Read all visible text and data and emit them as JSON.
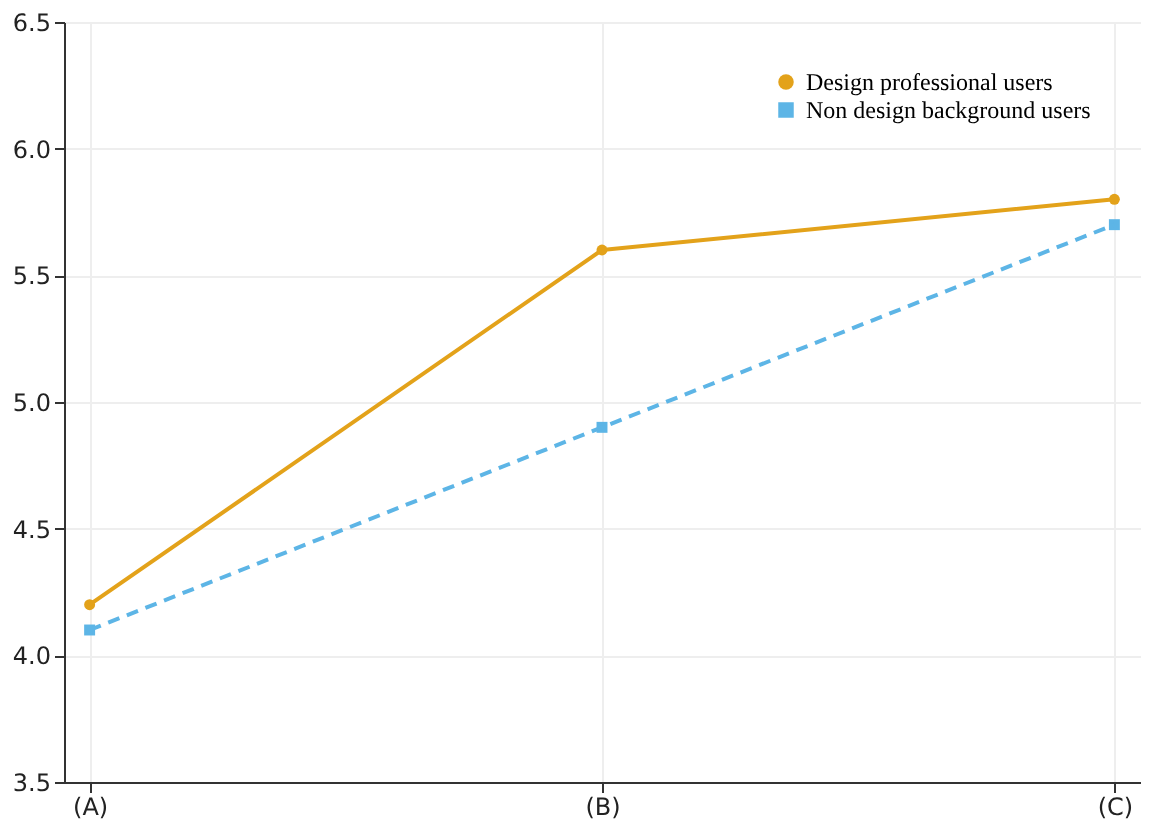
{
  "chart_data": {
    "type": "line",
    "categories": [
      "(A)",
      "(B)",
      "(C)"
    ],
    "series": [
      {
        "name": "Design professional users",
        "color": "#e3a21a",
        "values": [
          4.2,
          5.6,
          5.8
        ],
        "marker": "circle",
        "line_style": "solid"
      },
      {
        "name": "Non design background users",
        "color": "#5db5e6",
        "values": [
          4.1,
          4.9,
          5.7
        ],
        "marker": "square",
        "line_style": "dashed"
      }
    ],
    "ylim": [
      3.5,
      6.5
    ],
    "yticks": [
      {
        "value": 3.5,
        "label": "3.5"
      },
      {
        "value": 4,
        "label": "4.0"
      },
      {
        "value": 4.5,
        "label": "4.5"
      },
      {
        "value": 5,
        "label": "5.0"
      },
      {
        "value": 5.5,
        "label": "5.5"
      },
      {
        "value": 6,
        "label": "6.0"
      },
      {
        "value": 6.5,
        "label": "6.5"
      }
    ],
    "grid": true,
    "legend": "top right"
  }
}
